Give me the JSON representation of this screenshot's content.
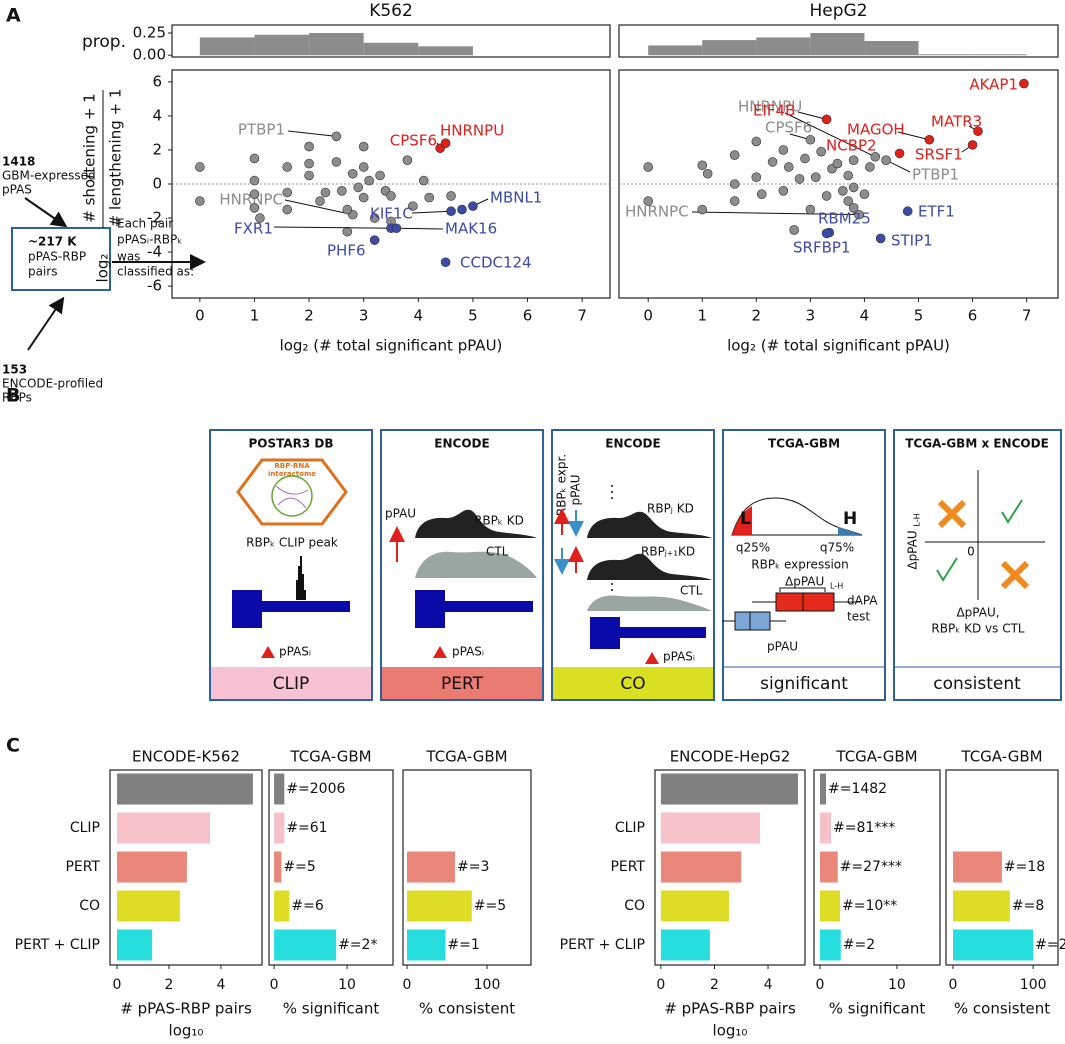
{
  "panel_labels": [
    "A",
    "B",
    "C"
  ],
  "chart_data": [
    {
      "type": "histogram",
      "title": "K562",
      "ylabel": "prop.",
      "bins": [
        0,
        1,
        2,
        3,
        4,
        5
      ],
      "values": [
        0.2,
        0.23,
        0.25,
        0.14,
        0.1
      ],
      "color": "#8c8c8c",
      "xlim": [
        -0.51,
        7.51
      ],
      "ylim": [
        -0.02,
        0.34
      ],
      "yticks": [
        {
          "value": 0,
          "label": "0.00"
        },
        {
          "value": 0.25,
          "label": "0.25"
        }
      ]
    },
    {
      "type": "histogram",
      "title": "HepG2",
      "bins": [
        0,
        1,
        2,
        3,
        4,
        5,
        6,
        7
      ],
      "values": [
        0.11,
        0.17,
        0.2,
        0.25,
        0.16,
        0.01,
        0.01
      ],
      "color": "#8c8c8c",
      "xlim": [
        -0.54,
        7.58
      ],
      "ylim": [
        -0.02,
        0.34
      ]
    },
    {
      "type": "scatter",
      "xlabel": "log₂ (# total significant pPAU)",
      "ylabel": {
        "prefix": "log₂",
        "numerator": "# shortening + 1",
        "denominator": "# lengthening + 1"
      },
      "xlim": [
        -0.51,
        7.51
      ],
      "ylim": [
        -6.7,
        6.7
      ],
      "xticks": [
        0,
        1,
        2,
        3,
        4,
        5,
        6,
        7
      ],
      "yticks": [
        -6,
        -4,
        -2,
        0,
        2,
        4,
        6
      ],
      "hline": 0,
      "series": [
        {
          "color": "#8c8c8c",
          "x": [
            2.5,
            2.8,
            0,
            0,
            1,
            1,
            1,
            1,
            1.1,
            1.6,
            1.6,
            1.6,
            2,
            2,
            2,
            2.2,
            2.3,
            2.5,
            2.6,
            2.7,
            2.7,
            2.8,
            2.9,
            3,
            3,
            3,
            3.1,
            3.2,
            3.3,
            3.4,
            3.5,
            3.5,
            3.8,
            3.9,
            4.1,
            4.2,
            4.6
          ],
          "values": [
            2.8,
            -1.8,
            1,
            -1,
            1.5,
            0.2,
            -0.6,
            -1.4,
            -2,
            1,
            -0.5,
            -1.5,
            2.2,
            1.2,
            0.5,
            -1,
            -0.5,
            1.3,
            -0.4,
            -2.8,
            -1.5,
            0.6,
            -0.2,
            2.2,
            1,
            -0.8,
            0.2,
            -2,
            0.5,
            -0.4,
            -2.2,
            -0.7,
            1.4,
            -1.3,
            0.2,
            -0.8,
            -0.7
          ],
          "labels": [
            "PTBP1",
            "HNRNPC",
            null,
            null,
            null,
            null,
            null,
            null,
            null,
            null,
            null,
            null,
            null,
            null,
            null,
            null,
            null,
            null,
            null,
            null,
            null,
            null,
            null,
            null,
            null,
            null,
            null,
            null,
            null,
            null,
            null,
            null,
            null,
            null,
            null,
            null,
            null
          ]
        },
        {
          "color": "#e0201b",
          "x": [
            4.4,
            4.5
          ],
          "values": [
            2.1,
            2.4
          ],
          "labels": [
            "CPSF6",
            "HNRNPU"
          ]
        },
        {
          "color": "#3a4ba8",
          "x": [
            4.6,
            5.0,
            3.5,
            3.6,
            3.2,
            4.5,
            4.8
          ],
          "values": [
            -1.6,
            -1.3,
            -2.6,
            -2.6,
            -3.3,
            -4.6,
            -1.5
          ],
          "labels": [
            "KIF1C",
            "MBNL1",
            "FXR1",
            "MAK16",
            "PHF6",
            "CCDC124",
            null
          ]
        }
      ]
    },
    {
      "type": "scatter",
      "xlabel": "log₂ (# total significant pPAU)",
      "xlim": [
        -0.54,
        7.58
      ],
      "ylim": [
        -6.7,
        6.7
      ],
      "xticks": [
        0,
        1,
        2,
        3,
        4,
        5,
        6,
        7
      ],
      "hline": 0,
      "series": [
        {
          "color": "#8c8c8c",
          "x": [
            4.2,
            3.0,
            4.4,
            3.9,
            0,
            0,
            1,
            1,
            1.1,
            1.6,
            1.6,
            1.6,
            2,
            2,
            2.1,
            2.3,
            2.5,
            2.5,
            2.6,
            2.7,
            2.8,
            2.9,
            3,
            3.1,
            3.2,
            3.3,
            3.4,
            3.5,
            3.6,
            3.7,
            3.7,
            3.8,
            3.8,
            4,
            4.1,
            3.8
          ],
          "values": [
            1.6,
            2.6,
            1.4,
            -1.8,
            1,
            -1,
            1.1,
            -1.5,
            0.6,
            1.7,
            0,
            -1,
            2.5,
            0.4,
            -0.6,
            1.3,
            -0.4,
            2,
            1,
            -2.7,
            0.3,
            1.5,
            -1.5,
            0.4,
            1.9,
            -0.7,
            0.9,
            1.2,
            -0.4,
            -1,
            0.5,
            -0.2,
            1.4,
            -0.6,
            1,
            -1.4
          ],
          "labels": [
            "HNRNPU",
            "CPSF6",
            "PTBP1",
            "HNRNPC",
            null,
            null,
            null,
            null,
            null,
            null,
            null,
            null,
            null,
            null,
            null,
            null,
            null,
            null,
            null,
            null,
            null,
            null,
            null,
            null,
            null,
            null,
            null,
            null,
            null,
            null,
            null,
            null,
            null,
            null,
            null,
            null
          ]
        },
        {
          "color": "#e0201b",
          "x": [
            6.95,
            3.3,
            5.2,
            6.1,
            4.65,
            6.0
          ],
          "values": [
            5.9,
            3.8,
            2.6,
            3.1,
            1.8,
            2.3
          ],
          "labels": [
            "AKAP1",
            "EIF4B",
            "MAGOH",
            "MATR3",
            "NCBP2",
            "SRSF1"
          ]
        },
        {
          "color": "#3a4ba8",
          "x": [
            4.8,
            3.35,
            3.3,
            4.3
          ],
          "values": [
            -1.6,
            -2.85,
            -2.9,
            -3.2
          ],
          "labels": [
            "ETF1",
            "RBM25",
            "SRFBP1",
            "STIP1"
          ]
        }
      ]
    },
    {
      "type": "barh",
      "title": "ENCODE-K562",
      "categories": [
        null,
        "CLIP",
        "PERT",
        "CO",
        "PERT + CLIP"
      ],
      "values": [
        5.23,
        3.58,
        2.69,
        2.42,
        1.35
      ],
      "colors": [
        "#808080",
        "#f7c1ca",
        "#e8877a",
        "#dedc25",
        "#26dede"
      ],
      "xlim": [
        -0.27,
        5.58
      ],
      "xticks": [
        0,
        2,
        4
      ],
      "xlabel": "# pPAS-RBP pairs",
      "xlabel_line2": "log₁₀"
    },
    {
      "type": "barh",
      "title": "TCGA-GBM",
      "values": [
        1.4,
        1.4,
        1.0,
        2.1,
        8.5
      ],
      "annotations": [
        "#=2006",
        "#=61",
        "#=5",
        "#=6",
        "#=2*"
      ],
      "colors": [
        "#808080",
        "#f7c1ca",
        "#e8877a",
        "#dedc25",
        "#26dede"
      ],
      "xlim": [
        -0.7,
        16.3
      ],
      "xticks": [
        0,
        10
      ],
      "xlabel": "% significant"
    },
    {
      "type": "barh",
      "title": "TCGA-GBM",
      "values": [
        null,
        null,
        60,
        81,
        48
      ],
      "annotations": [
        null,
        null,
        "#=3",
        "#=5",
        "#=1"
      ],
      "colors": [
        "#808080",
        "#f7c1ca",
        "#e8877a",
        "#dedc25",
        "#26dede"
      ],
      "xlim": [
        -5,
        155
      ],
      "xticks": [
        0,
        100
      ],
      "xlabel": "% consistent"
    },
    {
      "type": "barh",
      "title": "ENCODE-HepG2",
      "categories": [
        null,
        "CLIP",
        "PERT",
        "CO",
        "PERT + CLIP"
      ],
      "values": [
        5.12,
        3.7,
        3.0,
        2.54,
        1.83
      ],
      "colors": [
        "#808080",
        "#f7c1ca",
        "#e8877a",
        "#dedc25",
        "#26dede"
      ],
      "xlim": [
        -0.22,
        5.38
      ],
      "xticks": [
        0,
        2,
        4
      ],
      "xlabel": "# pPAS-RBP pairs",
      "xlabel_line2": "log₁₀"
    },
    {
      "type": "barh",
      "title": "TCGA-GBM",
      "values": [
        0.78,
        1.43,
        2.3,
        2.6,
        2.7
      ],
      "annotations": [
        "#=1482",
        "#=81***",
        "#=27***",
        "#=10**",
        "#=2"
      ],
      "colors": [
        "#808080",
        "#f7c1ca",
        "#e8877a",
        "#dedc25",
        "#26dede"
      ],
      "xlim": [
        -0.78,
        15.6
      ],
      "xticks": [
        0,
        10
      ],
      "xlabel": "% significant"
    },
    {
      "type": "barh",
      "title": "TCGA-GBM",
      "values": [
        null,
        null,
        61,
        71,
        100
      ],
      "annotations": [
        null,
        null,
        "#=18",
        "#=8",
        "#=2"
      ],
      "colors": [
        "#808080",
        "#f7c1ca",
        "#e8877a",
        "#dedc25",
        "#26dede"
      ],
      "xlim": [
        -8.75,
        131
      ],
      "xticks": [
        0,
        100
      ],
      "xlabel": "% consistent"
    }
  ],
  "diagram": {
    "gbm": {
      "count": "1418",
      "lines": [
        "GBM-expressed",
        "pPAS"
      ]
    },
    "pairs": {
      "count": "~217 K",
      "lines": [
        "pPAS-RBP",
        "pairs"
      ]
    },
    "rbps": {
      "count": "153",
      "lines": [
        "ENCODE-profiled",
        "RBPs"
      ]
    },
    "classify": [
      "Each pair",
      "pPASᵢ-RBPₖ",
      "was",
      "classified as:"
    ],
    "boxes": [
      {
        "title": "POSTAR3 DB",
        "strip": "CLIP",
        "texts": [
          "RBP-RNA",
          "interactome",
          "RBPₖ CLIP peak",
          "pPASᵢ"
        ]
      },
      {
        "title": "ENCODE",
        "strip": "PERT",
        "texts": [
          "pPAU",
          "RBPₖ KD",
          "CTL",
          "pPASᵢ"
        ]
      },
      {
        "title": "ENCODE",
        "strip": "CO",
        "texts": [
          "RBPₖ expr.",
          "pPAU",
          "RBPⱼ KD",
          "RBPⱼ₊₁KD",
          "CTL",
          "pPASᵢ"
        ]
      },
      {
        "title": "TCGA-GBM",
        "strip": "significant",
        "texts": [
          "L",
          "H",
          "q25%",
          "q75%",
          "RBPₖ expression",
          "ΔpPAU",
          "L-H",
          "dAPA",
          "test",
          "pPAU"
        ]
      },
      {
        "title": "TCGA-GBM x ENCODE",
        "strip": "consistent",
        "texts": [
          "ΔpPAU",
          "L-H",
          "0",
          "ΔpPAU,",
          "RBPₖ KD vs CTL"
        ]
      }
    ]
  }
}
